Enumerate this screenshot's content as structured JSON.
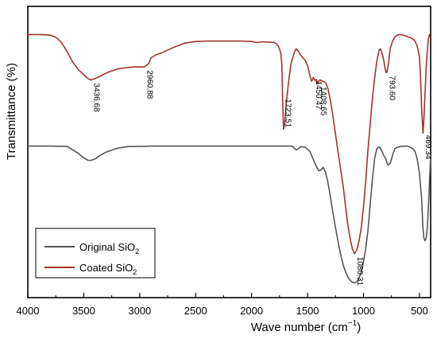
{
  "chart_data": {
    "type": "line",
    "title": "",
    "xlabel": "Wave number (cm",
    "xlabel_sup": "−1",
    "xlabel_close": ")",
    "ylabel": "Transmittance (%)",
    "xlim": [
      4000,
      400
    ],
    "x_reversed": true,
    "ylim": [
      0,
      100
    ],
    "y_tick_labels_shown": false,
    "x_ticks": [
      4000,
      3500,
      3000,
      2500,
      2000,
      1500,
      1000,
      500
    ],
    "grid": false,
    "legend_position": "bottom-left",
    "series": [
      {
        "name": "Original SiO",
        "name_sub": "2",
        "color": "#555555",
        "x": [
          4000,
          3800,
          3650,
          3560,
          3500,
          3460,
          3436,
          3400,
          3350,
          3300,
          3200,
          3100,
          3000,
          2960,
          2900,
          2800,
          2700,
          2600,
          2500,
          2400,
          2200,
          2000,
          1900,
          1800,
          1700,
          1640,
          1620,
          1600,
          1580,
          1560,
          1520,
          1480,
          1440,
          1420,
          1400,
          1380,
          1360,
          1340,
          1320,
          1300,
          1280,
          1250,
          1220,
          1200,
          1180,
          1160,
          1140,
          1120,
          1100,
          1080,
          1060,
          1040,
          1020,
          1000,
          980,
          960,
          940,
          920,
          900,
          880,
          860,
          840,
          820,
          800,
          790,
          780,
          760,
          740,
          720,
          700,
          660,
          620,
          600,
          580,
          560,
          540,
          520,
          500,
          490,
          480,
          470,
          460,
          450,
          440,
          430,
          420,
          410,
          400
        ],
        "y": [
          53.5,
          53.5,
          53.4,
          51,
          49,
          48,
          48,
          48.5,
          50,
          51.2,
          52.7,
          53.3,
          53.4,
          53.4,
          53.5,
          53.5,
          53.5,
          53.5,
          53.5,
          53.5,
          53.5,
          53.5,
          53.5,
          53.5,
          53.5,
          53.5,
          52.8,
          52,
          52.5,
          53.3,
          53,
          51.5,
          47.5,
          45.5,
          44,
          44.3,
          45.3,
          43.5,
          40,
          35,
          29.5,
          22,
          15,
          11,
          7.5,
          5,
          3,
          1.8,
          1,
          0.8,
          1.2,
          2.5,
          5,
          9,
          14,
          21,
          31,
          41,
          49,
          52.5,
          53.2,
          52,
          50,
          48.5,
          47,
          46.2,
          47,
          50,
          52.5,
          53,
          53.4,
          53.5,
          53.4,
          53,
          52.5,
          51.5,
          48.5,
          43,
          38,
          33,
          23,
          18,
          17,
          18,
          22,
          30,
          40,
          50
        ]
      },
      {
        "name": "Coated SiO",
        "name_sub": "2",
        "color": "#A0342B",
        "x": [
          4000,
          3900,
          3800,
          3750,
          3700,
          3650,
          3600,
          3550,
          3500,
          3460,
          3436,
          3400,
          3350,
          3300,
          3250,
          3200,
          3150,
          3100,
          3050,
          3000,
          2960,
          2920,
          2900,
          2850,
          2800,
          2700,
          2600,
          2500,
          2400,
          2300,
          2200,
          2100,
          2000,
          1950,
          1900,
          1850,
          1800,
          1780,
          1760,
          1740,
          1730,
          1723,
          1715,
          1705,
          1690,
          1670,
          1650,
          1630,
          1610,
          1600,
          1580,
          1560,
          1540,
          1520,
          1500,
          1480,
          1465,
          1455,
          1450,
          1445,
          1430,
          1420,
          1415,
          1408,
          1400,
          1390,
          1380,
          1360,
          1340,
          1320,
          1300,
          1280,
          1260,
          1240,
          1220,
          1200,
          1180,
          1160,
          1140,
          1120,
          1100,
          1080,
          1060,
          1040,
          1020,
          1000,
          980,
          960,
          940,
          920,
          900,
          880,
          860,
          850,
          840,
          820,
          810,
          800,
          794,
          790,
          780,
          770,
          760,
          740,
          720,
          700,
          680,
          660,
          640,
          620,
          600,
          580,
          560,
          540,
          520,
          500,
          490,
          480,
          470,
          469,
          465,
          460,
          450,
          440,
          430,
          420,
          410,
          400
        ],
        "y": [
          96.5,
          96.5,
          96.3,
          95.5,
          93.5,
          90,
          86,
          83,
          81,
          79.5,
          79,
          79.5,
          80.5,
          81.7,
          82.5,
          83.2,
          83.6,
          83.8,
          84,
          84,
          84,
          85.3,
          87.5,
          88.8,
          89.5,
          91.5,
          93.2,
          93.8,
          94,
          94,
          94,
          94,
          93.8,
          93.4,
          93.7,
          93.6,
          93.5,
          93,
          92,
          89.5,
          85,
          72,
          60,
          62,
          70,
          78,
          85,
          88,
          90.5,
          91,
          90,
          88.5,
          87.5,
          86.5,
          84.5,
          81,
          78.5,
          79,
          80,
          79.7,
          78.7,
          79.2,
          78.5,
          77.5,
          78.5,
          79,
          78.8,
          78.5,
          78,
          76,
          72,
          67,
          61,
          55,
          49,
          43.5,
          37.5,
          30,
          23,
          18,
          14,
          12,
          13.5,
          17,
          22,
          30,
          40,
          52,
          62,
          72,
          80,
          86.5,
          90.5,
          91,
          90,
          87,
          84,
          82,
          81.8,
          82,
          84.5,
          88,
          91.3,
          94,
          95.5,
          96.2,
          96.5,
          96.4,
          96.2,
          96,
          95.5,
          95.3,
          94.8,
          94,
          92,
          88,
          80,
          68,
          60,
          58.5,
          60,
          64,
          74,
          84,
          90,
          95,
          96.5,
          97
        ]
      }
    ],
    "annotations": [
      {
        "label": "3436.68",
        "x": 3436.68,
        "series": 1
      },
      {
        "label": "2960.88",
        "x": 2960.88,
        "series": 1
      },
      {
        "label": "1723.51",
        "x": 1723.51,
        "series": 1
      },
      {
        "label": "1450.47",
        "x": 1450.47,
        "series": 1
      },
      {
        "label": "1408.65",
        "x": 1408.65,
        "series": 1
      },
      {
        "label": "1080.31",
        "x": 1080.31,
        "series": 1
      },
      {
        "label": "793.60",
        "x": 793.6,
        "series": 1
      },
      {
        "label": "469.34",
        "x": 469.34,
        "series": 1
      }
    ]
  }
}
